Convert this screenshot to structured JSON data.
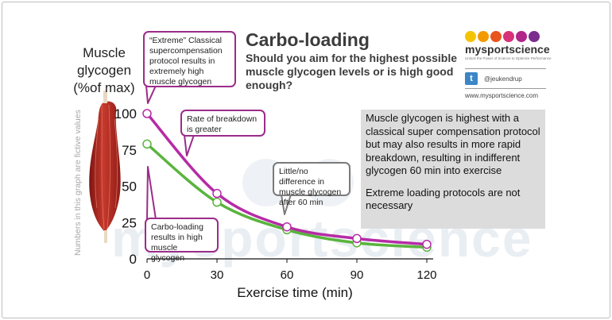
{
  "header": {
    "title": "Carbo-loading",
    "subtitle": "Should you aim for the highest possible muscle glycogen levels or is high good enough?"
  },
  "brand": {
    "name": "mysportscience",
    "tagline": "Unlock the Power of Science to Optimize Performance",
    "twitter_icon": "t",
    "twitter_handle": "@jeukendrup",
    "website": "www.mysportscience.com",
    "dot_colors": [
      "#f5c400",
      "#f29a00",
      "#e8541e",
      "#d8317a",
      "#b0268a",
      "#7b2d8e"
    ],
    "watermark": "mysportscience"
  },
  "axis_side_note": "Numbers in this graph are fictive values",
  "callouts": {
    "extreme": "“Extreme” Classical supercompensation protocol results in extremely high muscle glycogen",
    "breakdown": "Rate of breakdown is greater",
    "little": "Little/no difference in muscle glycogen after 60 min",
    "carbo": "Carbo-loading results in high muscle glycogen"
  },
  "info_box": {
    "p1": "Muscle glycogen is highest with a classical super compensation protocol but may also results in more rapid breakdown, resulting in indifferent glycogen 60 min into exercise",
    "p2": "Extreme loading protocols are not necessary"
  },
  "chart_data": {
    "type": "line",
    "xlabel": "Exercise time (min)",
    "ylabel": "Muscle glycogen (%of max)",
    "ylabel_lines": [
      "Muscle",
      "glycogen",
      "(%of max)"
    ],
    "xticks": [
      0,
      30,
      60,
      90,
      120
    ],
    "yticks": [
      0,
      25,
      50,
      75,
      100
    ],
    "xlim": [
      0,
      120
    ],
    "ylim": [
      0,
      100
    ],
    "grid": false,
    "series": [
      {
        "color": "#b62ba6",
        "x": [
          0,
          30,
          60,
          90,
          120
        ],
        "y": [
          100,
          45,
          22,
          14,
          10
        ]
      },
      {
        "color": "#59b43c",
        "x": [
          0,
          30,
          60,
          90,
          120
        ],
        "y": [
          79,
          39,
          20,
          11,
          8
        ]
      }
    ]
  }
}
